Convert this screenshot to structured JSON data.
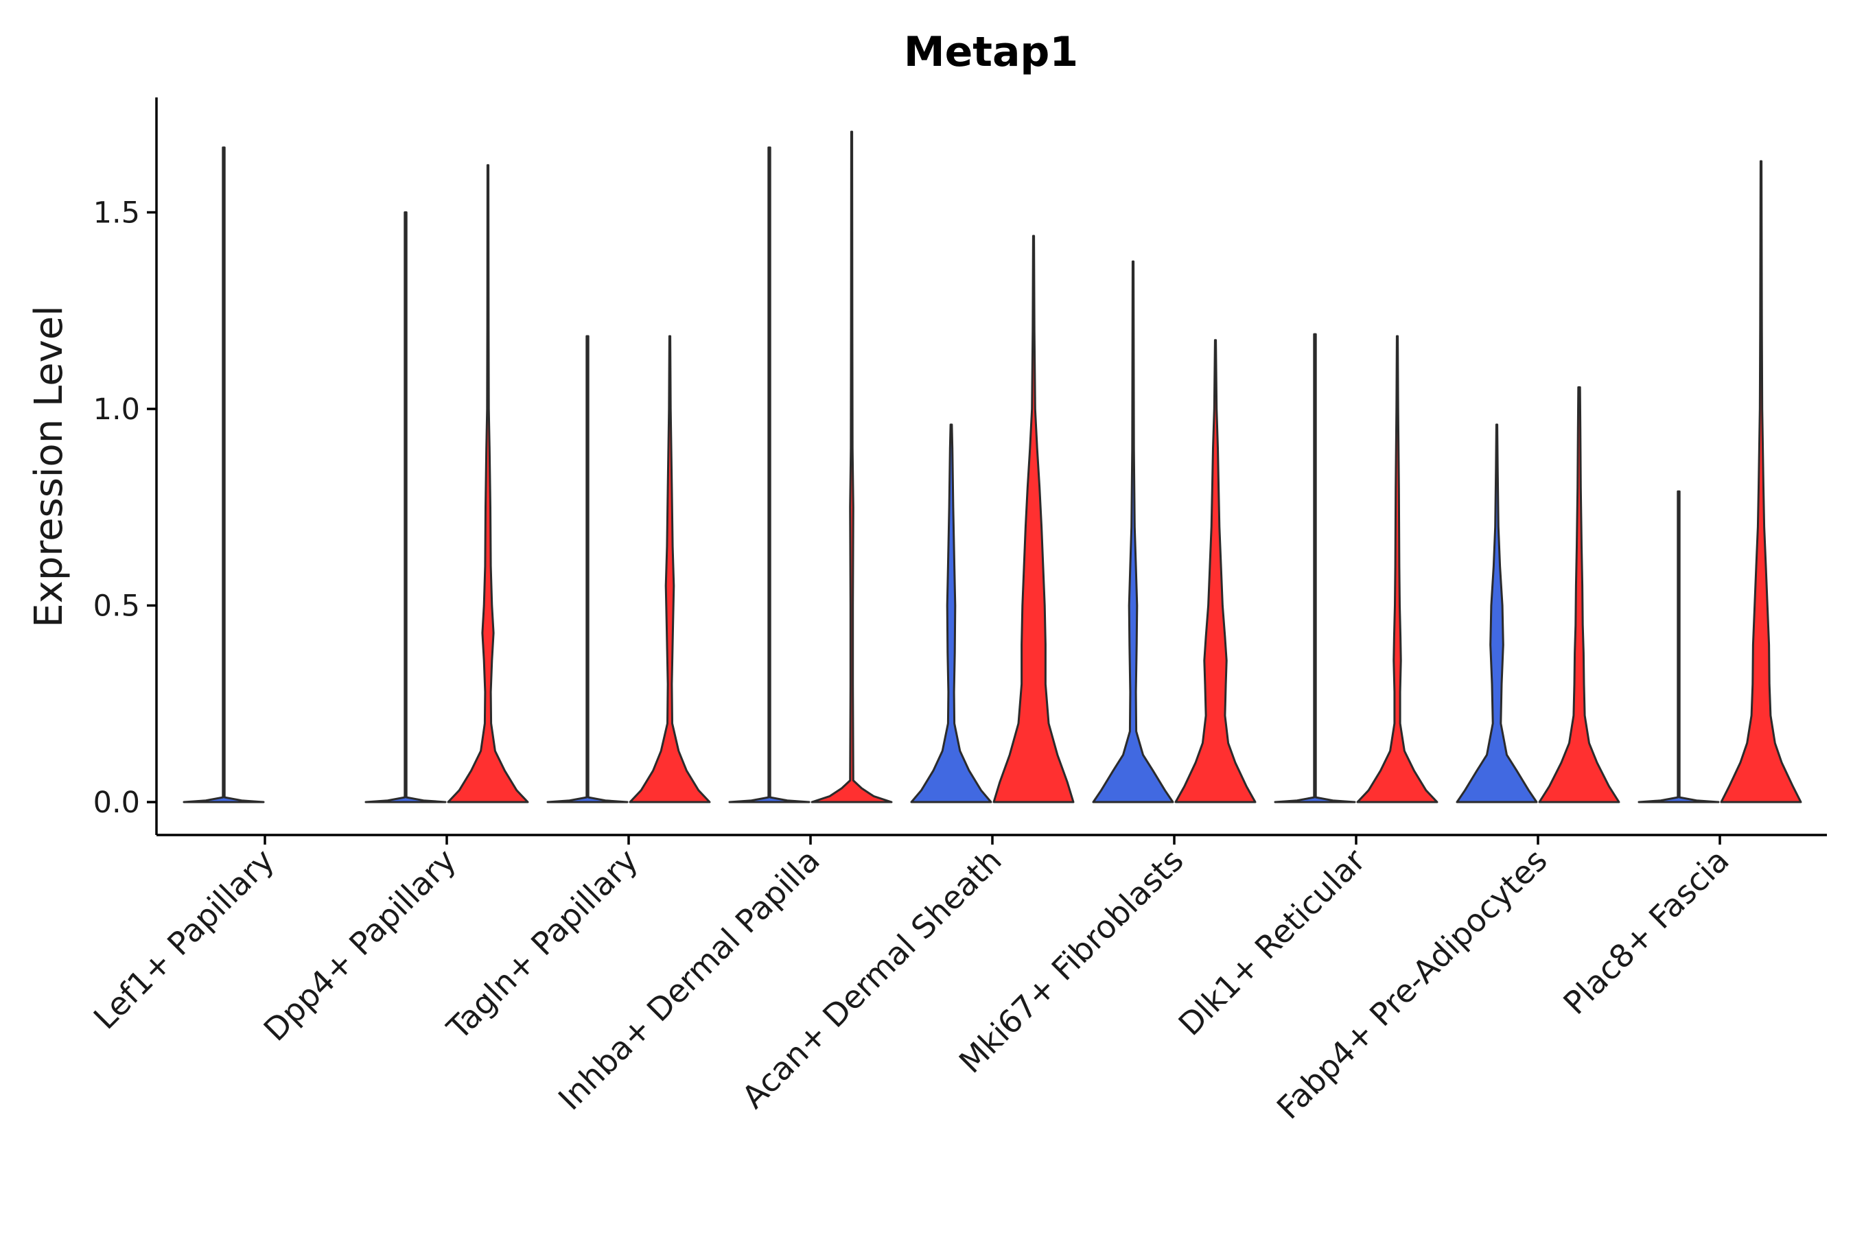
{
  "chart_data": {
    "type": "violin",
    "title": "Metap1",
    "xlabel": "",
    "ylabel": "Expression Level",
    "ylim": [
      -0.085,
      1.79
    ],
    "yticks": [
      0.0,
      0.5,
      1.0,
      1.5
    ],
    "ytick_labels": [
      "0.0",
      "0.5",
      "1.0",
      "1.5"
    ],
    "categories": [
      "Lef1+ Papillary",
      "Dpp4+ Papillary",
      "Tagln+ Papillary",
      "Inhba+ Dermal Papilla",
      "Acan+ Dermal Sheath",
      "Mki67+ Fibroblasts",
      "Dlk1+ Reticular",
      "Fabp4+ Pre-Adipocytes",
      "Plac8+ Fascia"
    ],
    "groups": [
      {
        "name": "group1",
        "color": "#4169E1"
      },
      {
        "name": "group2",
        "color": "#FF3030"
      }
    ],
    "violins": [
      {
        "category": "Lef1+ Papillary",
        "group": "group1",
        "max": 1.665,
        "profile": [
          [
            0.0,
            1.0
          ],
          [
            0.004,
            0.45
          ],
          [
            0.012,
            0.02
          ],
          [
            1.665,
            0.02
          ]
        ]
      },
      {
        "category": "Dpp4+ Papillary",
        "group": "group1",
        "max": 1.5,
        "profile": [
          [
            0.0,
            1.0
          ],
          [
            0.004,
            0.45
          ],
          [
            0.012,
            0.02
          ],
          [
            1.5,
            0.02
          ]
        ]
      },
      {
        "category": "Dpp4+ Papillary",
        "group": "group2",
        "max": 1.62,
        "profile": [
          [
            0.0,
            1.0
          ],
          [
            0.03,
            0.72
          ],
          [
            0.08,
            0.42
          ],
          [
            0.13,
            0.18
          ],
          [
            0.2,
            0.08
          ],
          [
            0.28,
            0.07
          ],
          [
            0.36,
            0.1
          ],
          [
            0.43,
            0.14
          ],
          [
            0.5,
            0.1
          ],
          [
            0.6,
            0.07
          ],
          [
            0.75,
            0.06
          ],
          [
            0.9,
            0.04
          ],
          [
            1.0,
            0.02
          ],
          [
            1.2,
            0.015
          ],
          [
            1.62,
            0.01
          ]
        ]
      },
      {
        "category": "Tagln+ Papillary",
        "group": "group1",
        "max": 1.185,
        "profile": [
          [
            0.0,
            1.0
          ],
          [
            0.004,
            0.45
          ],
          [
            0.012,
            0.02
          ],
          [
            1.185,
            0.02
          ]
        ]
      },
      {
        "category": "Tagln+ Papillary",
        "group": "group2",
        "max": 1.185,
        "profile": [
          [
            0.0,
            1.0
          ],
          [
            0.03,
            0.72
          ],
          [
            0.08,
            0.42
          ],
          [
            0.13,
            0.22
          ],
          [
            0.2,
            0.06
          ],
          [
            0.3,
            0.05
          ],
          [
            0.45,
            0.08
          ],
          [
            0.55,
            0.1
          ],
          [
            0.65,
            0.07
          ],
          [
            0.8,
            0.05
          ],
          [
            1.0,
            0.02
          ],
          [
            1.185,
            0.01
          ]
        ]
      },
      {
        "category": "Inhba+ Dermal Papilla",
        "group": "group1",
        "max": 1.665,
        "profile": [
          [
            0.0,
            1.0
          ],
          [
            0.004,
            0.45
          ],
          [
            0.012,
            0.02
          ],
          [
            1.665,
            0.02
          ]
        ]
      },
      {
        "category": "Inhba+ Dermal Papilla",
        "group": "group2",
        "max": 1.705,
        "profile": [
          [
            0.0,
            1.0
          ],
          [
            0.015,
            0.55
          ],
          [
            0.035,
            0.25
          ],
          [
            0.055,
            0.04
          ],
          [
            0.3,
            0.03
          ],
          [
            0.5,
            0.03
          ],
          [
            0.75,
            0.04
          ],
          [
            0.9,
            0.02
          ],
          [
            1.2,
            0.015
          ],
          [
            1.705,
            0.01
          ]
        ]
      },
      {
        "category": "Acan+ Dermal Sheath",
        "group": "group1",
        "max": 0.96,
        "profile": [
          [
            0.0,
            1.0
          ],
          [
            0.03,
            0.75
          ],
          [
            0.08,
            0.45
          ],
          [
            0.13,
            0.22
          ],
          [
            0.2,
            0.08
          ],
          [
            0.28,
            0.07
          ],
          [
            0.38,
            0.09
          ],
          [
            0.5,
            0.1
          ],
          [
            0.6,
            0.08
          ],
          [
            0.75,
            0.05
          ],
          [
            0.9,
            0.03
          ],
          [
            0.96,
            0.015
          ]
        ]
      },
      {
        "category": "Acan+ Dermal Sheath",
        "group": "group2",
        "max": 1.44,
        "profile": [
          [
            0.0,
            1.0
          ],
          [
            0.05,
            0.85
          ],
          [
            0.12,
            0.6
          ],
          [
            0.2,
            0.38
          ],
          [
            0.3,
            0.3
          ],
          [
            0.4,
            0.3
          ],
          [
            0.5,
            0.28
          ],
          [
            0.6,
            0.24
          ],
          [
            0.7,
            0.2
          ],
          [
            0.8,
            0.15
          ],
          [
            0.9,
            0.09
          ],
          [
            1.0,
            0.04
          ],
          [
            1.2,
            0.02
          ],
          [
            1.44,
            0.01
          ]
        ]
      },
      {
        "category": "Mki67+ Fibroblasts",
        "group": "group1",
        "max": 1.375,
        "profile": [
          [
            0.0,
            1.0
          ],
          [
            0.03,
            0.8
          ],
          [
            0.08,
            0.5
          ],
          [
            0.12,
            0.25
          ],
          [
            0.18,
            0.08
          ],
          [
            0.28,
            0.07
          ],
          [
            0.4,
            0.09
          ],
          [
            0.5,
            0.1
          ],
          [
            0.6,
            0.07
          ],
          [
            0.7,
            0.04
          ],
          [
            0.9,
            0.02
          ],
          [
            1.375,
            0.01
          ]
        ]
      },
      {
        "category": "Mki67+ Fibroblasts",
        "group": "group2",
        "max": 1.175,
        "profile": [
          [
            0.0,
            1.0
          ],
          [
            0.04,
            0.78
          ],
          [
            0.1,
            0.5
          ],
          [
            0.15,
            0.32
          ],
          [
            0.22,
            0.24
          ],
          [
            0.3,
            0.26
          ],
          [
            0.36,
            0.28
          ],
          [
            0.42,
            0.24
          ],
          [
            0.5,
            0.18
          ],
          [
            0.6,
            0.14
          ],
          [
            0.7,
            0.1
          ],
          [
            0.8,
            0.08
          ],
          [
            0.9,
            0.06
          ],
          [
            1.0,
            0.03
          ],
          [
            1.175,
            0.01
          ]
        ]
      },
      {
        "category": "Dlk1+ Reticular",
        "group": "group1",
        "max": 1.19,
        "profile": [
          [
            0.0,
            1.0
          ],
          [
            0.004,
            0.45
          ],
          [
            0.012,
            0.02
          ],
          [
            1.19,
            0.02
          ]
        ]
      },
      {
        "category": "Dlk1+ Reticular",
        "group": "group2",
        "max": 1.185,
        "profile": [
          [
            0.0,
            1.0
          ],
          [
            0.03,
            0.72
          ],
          [
            0.08,
            0.42
          ],
          [
            0.13,
            0.18
          ],
          [
            0.2,
            0.07
          ],
          [
            0.28,
            0.07
          ],
          [
            0.36,
            0.09
          ],
          [
            0.42,
            0.08
          ],
          [
            0.5,
            0.06
          ],
          [
            0.6,
            0.05
          ],
          [
            0.8,
            0.04
          ],
          [
            1.0,
            0.02
          ],
          [
            1.185,
            0.01
          ]
        ]
      },
      {
        "category": "Fabp4+ Pre-Adipocytes",
        "group": "group1",
        "max": 0.96,
        "profile": [
          [
            0.0,
            1.0
          ],
          [
            0.03,
            0.8
          ],
          [
            0.08,
            0.5
          ],
          [
            0.12,
            0.25
          ],
          [
            0.2,
            0.1
          ],
          [
            0.3,
            0.12
          ],
          [
            0.4,
            0.16
          ],
          [
            0.5,
            0.14
          ],
          [
            0.6,
            0.08
          ],
          [
            0.7,
            0.04
          ],
          [
            0.85,
            0.02
          ],
          [
            0.96,
            0.01
          ]
        ]
      },
      {
        "category": "Fabp4+ Pre-Adipocytes",
        "group": "group2",
        "max": 1.055,
        "profile": [
          [
            0.0,
            1.0
          ],
          [
            0.04,
            0.75
          ],
          [
            0.1,
            0.45
          ],
          [
            0.15,
            0.25
          ],
          [
            0.22,
            0.14
          ],
          [
            0.3,
            0.12
          ],
          [
            0.38,
            0.11
          ],
          [
            0.45,
            0.09
          ],
          [
            0.55,
            0.08
          ],
          [
            0.65,
            0.06
          ],
          [
            0.8,
            0.04
          ],
          [
            0.95,
            0.03
          ],
          [
            1.055,
            0.02
          ]
        ]
      },
      {
        "category": "Plac8+ Fascia",
        "group": "group1",
        "max": 0.79,
        "profile": [
          [
            0.0,
            1.0
          ],
          [
            0.004,
            0.45
          ],
          [
            0.012,
            0.02
          ],
          [
            0.79,
            0.02
          ]
        ]
      },
      {
        "category": "Plac8+ Fascia",
        "group": "group2",
        "max": 1.63,
        "profile": [
          [
            0.0,
            1.0
          ],
          [
            0.04,
            0.8
          ],
          [
            0.1,
            0.52
          ],
          [
            0.15,
            0.35
          ],
          [
            0.22,
            0.24
          ],
          [
            0.3,
            0.21
          ],
          [
            0.4,
            0.2
          ],
          [
            0.5,
            0.16
          ],
          [
            0.6,
            0.12
          ],
          [
            0.7,
            0.08
          ],
          [
            0.8,
            0.06
          ],
          [
            1.0,
            0.03
          ],
          [
            1.2,
            0.02
          ],
          [
            1.63,
            0.01
          ]
        ]
      }
    ]
  }
}
